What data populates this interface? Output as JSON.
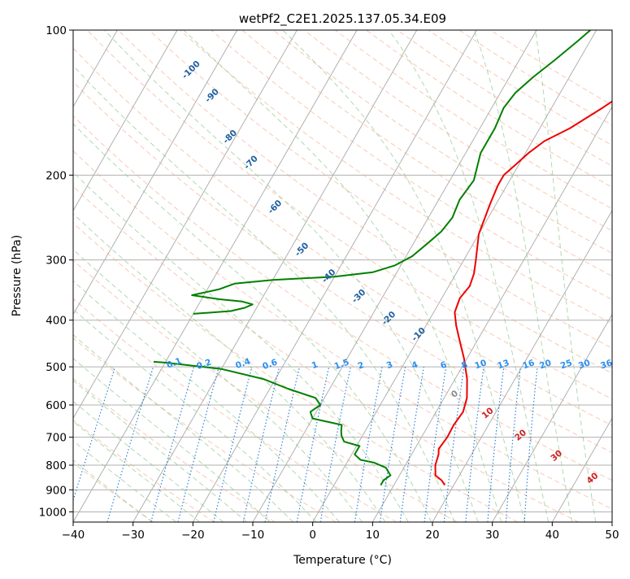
{
  "chart_data": {
    "type": "line",
    "title": "wetPf2_C2E1.2025.137.05.34.E09",
    "xlabel": "Temperature (°C)",
    "ylabel": "Pressure (hPa)",
    "xlim": [
      -40,
      50
    ],
    "ylim": [
      1050,
      100
    ],
    "y_scale": "log",
    "x_ticks": [
      -40,
      -30,
      -20,
      -10,
      0,
      10,
      20,
      30,
      40,
      50
    ],
    "y_ticks": [
      100,
      200,
      300,
      400,
      500,
      600,
      700,
      800,
      900,
      1000
    ],
    "grid": true,
    "legend": "none",
    "colors": {
      "temperature": "#ee0000",
      "dewpoint": "#008000",
      "dry_adiabat": "#f4a582",
      "moist_adiabat": "#8fc98f",
      "mixing_ratio": "#1f77d4",
      "isotherm": "#8c8c8c",
      "moist_label": "#1f5f9f",
      "temp_label": "#cc2222"
    },
    "series": [
      {
        "key": "temperature",
        "points": [
          [
            18.5,
            880
          ],
          [
            17.5,
            860
          ],
          [
            16,
            840
          ],
          [
            15,
            800
          ],
          [
            14.5,
            760
          ],
          [
            14,
            740
          ],
          [
            14.3,
            700
          ],
          [
            14.2,
            660
          ],
          [
            14.5,
            620
          ],
          [
            13.8,
            580
          ],
          [
            12,
            530
          ],
          [
            9.5,
            480
          ],
          [
            7,
            440
          ],
          [
            5,
            410
          ],
          [
            3.5,
            385
          ],
          [
            3,
            360
          ],
          [
            3.5,
            340
          ],
          [
            3,
            320
          ],
          [
            2,
            300
          ],
          [
            0,
            265
          ],
          [
            -1,
            230
          ],
          [
            -1.5,
            210
          ],
          [
            -1.5,
            200
          ],
          [
            -0.5,
            190
          ],
          [
            0.5,
            180
          ],
          [
            2,
            170
          ],
          [
            5,
            160
          ],
          [
            8.5,
            145
          ],
          [
            12,
            130
          ],
          [
            14.5,
            120
          ],
          [
            16,
            115
          ],
          [
            17.5,
            110
          ],
          [
            20.5,
            105
          ],
          [
            22.5,
            100
          ]
        ]
      },
      {
        "key": "dewpoint",
        "points": [
          [
            7.8,
            880
          ],
          [
            7.8,
            860
          ],
          [
            8.5,
            840
          ],
          [
            7,
            810
          ],
          [
            4.5,
            790
          ],
          [
            2,
            780
          ],
          [
            0.5,
            760
          ],
          [
            0.5,
            730
          ],
          [
            -2.5,
            715
          ],
          [
            -3.5,
            695
          ],
          [
            -4,
            680
          ],
          [
            -4.5,
            660
          ],
          [
            -10,
            640
          ],
          [
            -11,
            620
          ],
          [
            -10,
            600
          ],
          [
            -11.5,
            580
          ],
          [
            -17,
            555
          ],
          [
            -22,
            530
          ],
          [
            -30,
            505
          ],
          [
            -40,
            490
          ],
          [
            -42,
            488
          ]
        ]
      },
      {
        "key": "dewpoint",
        "points": [
          [
            -40,
            388
          ],
          [
            -34,
            383
          ],
          [
            -32,
            377
          ],
          [
            -31,
            371
          ],
          [
            -33,
            366
          ],
          [
            -37,
            362
          ],
          [
            -42,
            355
          ],
          [
            -38,
            345
          ],
          [
            -36,
            336
          ],
          [
            -30,
            330
          ],
          [
            -20,
            325
          ],
          [
            -14,
            318
          ],
          [
            -11,
            308
          ],
          [
            -9,
            295
          ],
          [
            -7.5,
            275
          ],
          [
            -6.5,
            262
          ],
          [
            -6,
            245
          ],
          [
            -6.5,
            225
          ],
          [
            -6,
            205
          ],
          [
            -7.5,
            180
          ],
          [
            -7.5,
            160
          ],
          [
            -8,
            145
          ],
          [
            -7.5,
            135
          ],
          [
            -6,
            125
          ],
          [
            -4,
            115
          ],
          [
            -2,
            105
          ],
          [
            -1,
            100
          ]
        ]
      }
    ],
    "mixing_ratio_labels": [
      "0.1",
      "0.2",
      "0.4",
      "0.6",
      "1",
      "1.5",
      "2",
      "3",
      "4",
      "6",
      "8",
      "10",
      "13",
      "16",
      "20",
      "25",
      "30",
      "36"
    ],
    "moist_adiabat_labels": [
      "-100",
      "-90",
      "-80",
      "-70",
      "-60",
      "-50",
      "-40",
      "-30",
      "-20",
      "-10"
    ],
    "isotherm_labels": [
      "0",
      "10",
      "20",
      "30",
      "40"
    ]
  }
}
